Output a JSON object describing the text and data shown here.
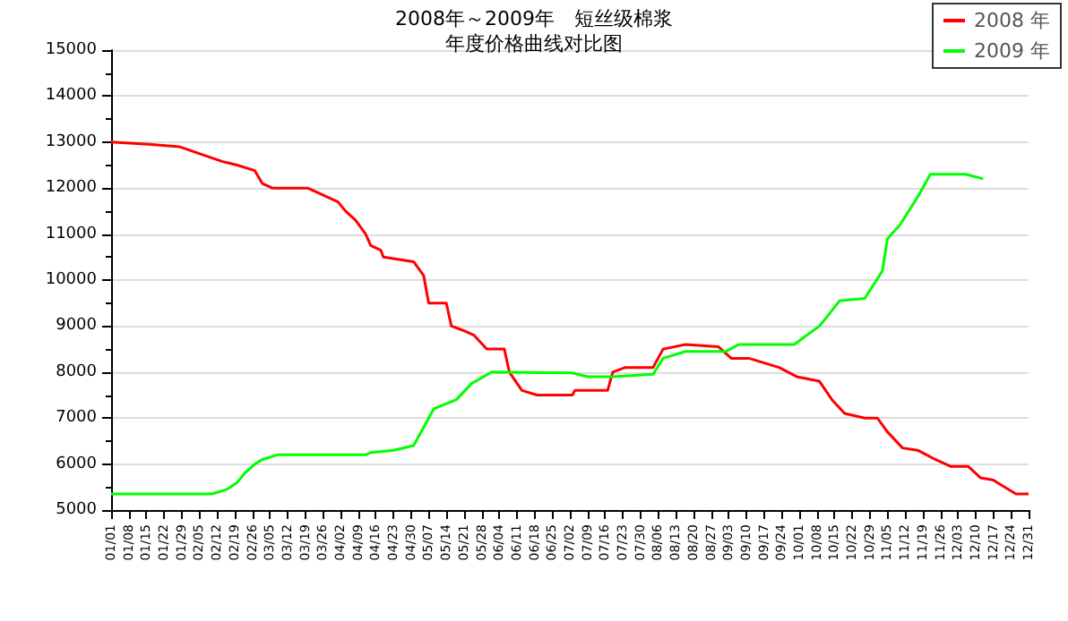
{
  "chart_data": {
    "type": "line",
    "title": "2008年～2009年　短丝级棉浆",
    "subtitle": "年度价格曲线对比图",
    "xlim": [
      "--01-01",
      "--12-31"
    ],
    "xticks": [
      {
        "value": "--01-01",
        "label": "01/01"
      },
      {
        "value": "--01-08",
        "label": "01/08"
      },
      {
        "value": "--01-15",
        "label": "01/15"
      },
      {
        "value": "--01-22",
        "label": "01/22"
      },
      {
        "value": "--01-29",
        "label": "01/29"
      },
      {
        "value": "--02-05",
        "label": "02/05"
      },
      {
        "value": "--02-12",
        "label": "02/12"
      },
      {
        "value": "--02-19",
        "label": "02/19"
      },
      {
        "value": "--02-26",
        "label": "02/26"
      },
      {
        "value": "--03-05",
        "label": "03/05"
      },
      {
        "value": "--03-12",
        "label": "03/12"
      },
      {
        "value": "--03-19",
        "label": "03/19"
      },
      {
        "value": "--03-26",
        "label": "03/26"
      },
      {
        "value": "--04-02",
        "label": "04/02"
      },
      {
        "value": "--04-09",
        "label": "04/09"
      },
      {
        "value": "--04-16",
        "label": "04/16"
      },
      {
        "value": "--04-23",
        "label": "04/23"
      },
      {
        "value": "--04-30",
        "label": "04/30"
      },
      {
        "value": "--05-07",
        "label": "05/07"
      },
      {
        "value": "--05-14",
        "label": "05/14"
      },
      {
        "value": "--05-21",
        "label": "05/21"
      },
      {
        "value": "--05-28",
        "label": "05/28"
      },
      {
        "value": "--06-04",
        "label": "06/04"
      },
      {
        "value": "--06-11",
        "label": "06/11"
      },
      {
        "value": "--06-18",
        "label": "06/18"
      },
      {
        "value": "--06-25",
        "label": "06/25"
      },
      {
        "value": "--07-02",
        "label": "07/02"
      },
      {
        "value": "--07-09",
        "label": "07/09"
      },
      {
        "value": "--07-16",
        "label": "07/16"
      },
      {
        "value": "--07-23",
        "label": "07/23"
      },
      {
        "value": "--07-30",
        "label": "07/30"
      },
      {
        "value": "--08-06",
        "label": "08/06"
      },
      {
        "value": "--08-13",
        "label": "08/13"
      },
      {
        "value": "--08-20",
        "label": "08/20"
      },
      {
        "value": "--08-27",
        "label": "08/27"
      },
      {
        "value": "--09-03",
        "label": "09/03"
      },
      {
        "value": "--09-10",
        "label": "09/10"
      },
      {
        "value": "--09-17",
        "label": "09/17"
      },
      {
        "value": "--09-24",
        "label": "09/24"
      },
      {
        "value": "--10-01",
        "label": "10/01"
      },
      {
        "value": "--10-08",
        "label": "10/08"
      },
      {
        "value": "--10-15",
        "label": "10/15"
      },
      {
        "value": "--10-22",
        "label": "10/22"
      },
      {
        "value": "--10-29",
        "label": "10/29"
      },
      {
        "value": "--11-05",
        "label": "11/05"
      },
      {
        "value": "--11-12",
        "label": "11/12"
      },
      {
        "value": "--11-19",
        "label": "11/19"
      },
      {
        "value": "--11-26",
        "label": "11/26"
      },
      {
        "value": "--12-03",
        "label": "12/03"
      },
      {
        "value": "--12-10",
        "label": "12/10"
      },
      {
        "value": "--12-17",
        "label": "12/17"
      },
      {
        "value": "--12-24",
        "label": "12/24"
      },
      {
        "value": "--12-31",
        "label": "12/31"
      }
    ],
    "ylim": [
      5000,
      15000
    ],
    "yticks": [
      5000,
      6000,
      7000,
      8000,
      9000,
      10000,
      11000,
      12000,
      13000,
      14000,
      15000
    ],
    "grid": "y",
    "legend": "top right",
    "marker": "none",
    "line_style": "solid",
    "series": [
      {
        "name": "2008 年",
        "color": "#ff0000",
        "x": [
          "--01-01",
          "--01-16",
          "--01-28",
          "--02-14",
          "--02-20",
          "--02-27",
          "--03-02",
          "--03-06",
          "--03-20",
          "--03-26",
          "--04-01",
          "--04-04",
          "--04-08",
          "--04-12",
          "--04-14",
          "--04-18",
          "--04-19",
          "--05-01",
          "--05-05",
          "--05-07",
          "--05-14",
          "--05-16",
          "--05-21",
          "--05-25",
          "--05-30",
          "--06-06",
          "--06-08",
          "--06-13",
          "--06-19",
          "--07-03",
          "--07-04",
          "--07-17",
          "--07-19",
          "--07-24",
          "--08-04",
          "--08-08",
          "--08-17",
          "--08-30",
          "--09-04",
          "--09-11",
          "--09-23",
          "--09-30",
          "--10-09",
          "--10-14",
          "--10-19",
          "--10-27",
          "--11-01",
          "--11-05",
          "--11-11",
          "--11-17",
          "--11-24",
          "--11-30",
          "--12-07",
          "--12-12",
          "--12-17",
          "--12-20",
          "--12-26",
          "--12-31"
        ],
        "values": [
          13000,
          12950,
          12900,
          12580,
          12500,
          12380,
          12100,
          12000,
          12000,
          11850,
          11700,
          11500,
          11300,
          11000,
          10750,
          10650,
          10500,
          10400,
          10100,
          9500,
          9500,
          9000,
          8900,
          8800,
          8500,
          8500,
          8000,
          7600,
          7500,
          7500,
          7600,
          7600,
          8000,
          8100,
          8100,
          8500,
          8600,
          8550,
          8300,
          8300,
          8100,
          7900,
          7800,
          7400,
          7100,
          7000,
          7000,
          6700,
          6350,
          6300,
          6100,
          5950,
          5950,
          5700,
          5650,
          5550,
          5350,
          5350
        ]
      },
      {
        "name": "2009 年",
        "color": "#00ff00",
        "x": [
          "--01-01",
          "--02-10",
          "--02-16",
          "--02-20",
          "--02-23",
          "--02-27",
          "--03-02",
          "--03-08",
          "--04-12",
          "--04-14",
          "--04-23",
          "--05-01",
          "--05-07",
          "--05-09",
          "--05-18",
          "--05-24",
          "--06-01",
          "--07-03",
          "--07-09",
          "--07-19",
          "--08-04",
          "--08-08",
          "--08-17",
          "--09-02",
          "--09-07",
          "--09-29",
          "--10-09",
          "--10-12",
          "--10-17",
          "--10-27",
          "--11-03",
          "--11-05",
          "--11-10",
          "--11-18",
          "--11-22",
          "--12-06",
          "--12-13"
        ],
        "values": [
          5350,
          5350,
          5450,
          5600,
          5800,
          6000,
          6100,
          6200,
          6200,
          6250,
          6300,
          6400,
          7000,
          7200,
          7400,
          7750,
          8000,
          7980,
          7900,
          7900,
          7950,
          8300,
          8450,
          8450,
          8600,
          8600,
          9000,
          9200,
          9550,
          9600,
          10200,
          10900,
          11200,
          11900,
          12300,
          12300,
          12200
        ]
      }
    ]
  }
}
